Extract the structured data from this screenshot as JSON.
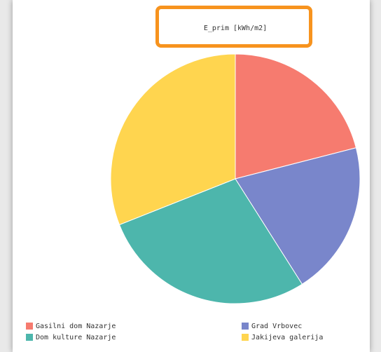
{
  "chart_data": {
    "type": "pie",
    "title": "E_prim [kWh/m2]",
    "categories": [
      "Gasilni dom Nazarje",
      "Grad Vrbovec",
      "Dom kulture Nazarje",
      "Jakijeva galerija"
    ],
    "values": [
      21,
      20,
      28,
      31
    ],
    "colors": [
      "#f67b6f",
      "#7986cb",
      "#4db6ac",
      "#ffd54f"
    ],
    "legend": "bottom"
  }
}
